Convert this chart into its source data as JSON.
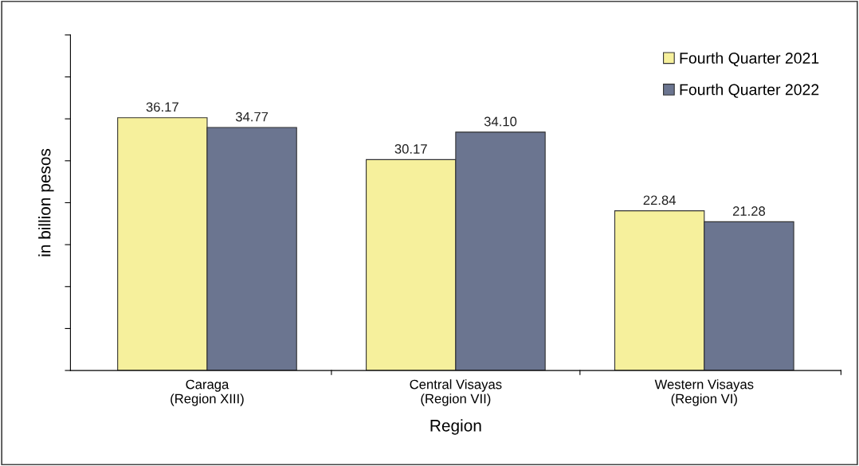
{
  "chart_data": {
    "type": "bar",
    "xlabel": "Region",
    "ylabel": "in billion pesos",
    "categories": [
      "Caraga\n(Region XIII)",
      "Central Visayas\n(Region VII)",
      "Western Visayas\n(Region VI)"
    ],
    "series": [
      {
        "name": "Fourth Quarter 2021",
        "color": "#f6f09c",
        "values": [
          36.17,
          30.17,
          22.84
        ],
        "value_labels": [
          "36.17",
          "30.17",
          "22.84"
        ]
      },
      {
        "name": "Fourth Quarter 2022",
        "color": "#6b7590",
        "values": [
          34.77,
          34.1,
          21.28
        ],
        "value_labels": [
          "34.77",
          "34.10",
          "21.28"
        ]
      }
    ],
    "ylim": [
      0,
      48
    ],
    "yticks": [
      {
        "value": 0,
        "label": null
      },
      {
        "value": 6,
        "label": null
      },
      {
        "value": 12,
        "label": null
      },
      {
        "value": 18,
        "label": null
      },
      {
        "value": 24,
        "label": null
      },
      {
        "value": 30,
        "label": null
      },
      {
        "value": 36,
        "label": null
      },
      {
        "value": 42,
        "label": null
      },
      {
        "value": 48,
        "label": null
      }
    ],
    "tick_labels": "x",
    "legend": "top right",
    "grid": false
  }
}
